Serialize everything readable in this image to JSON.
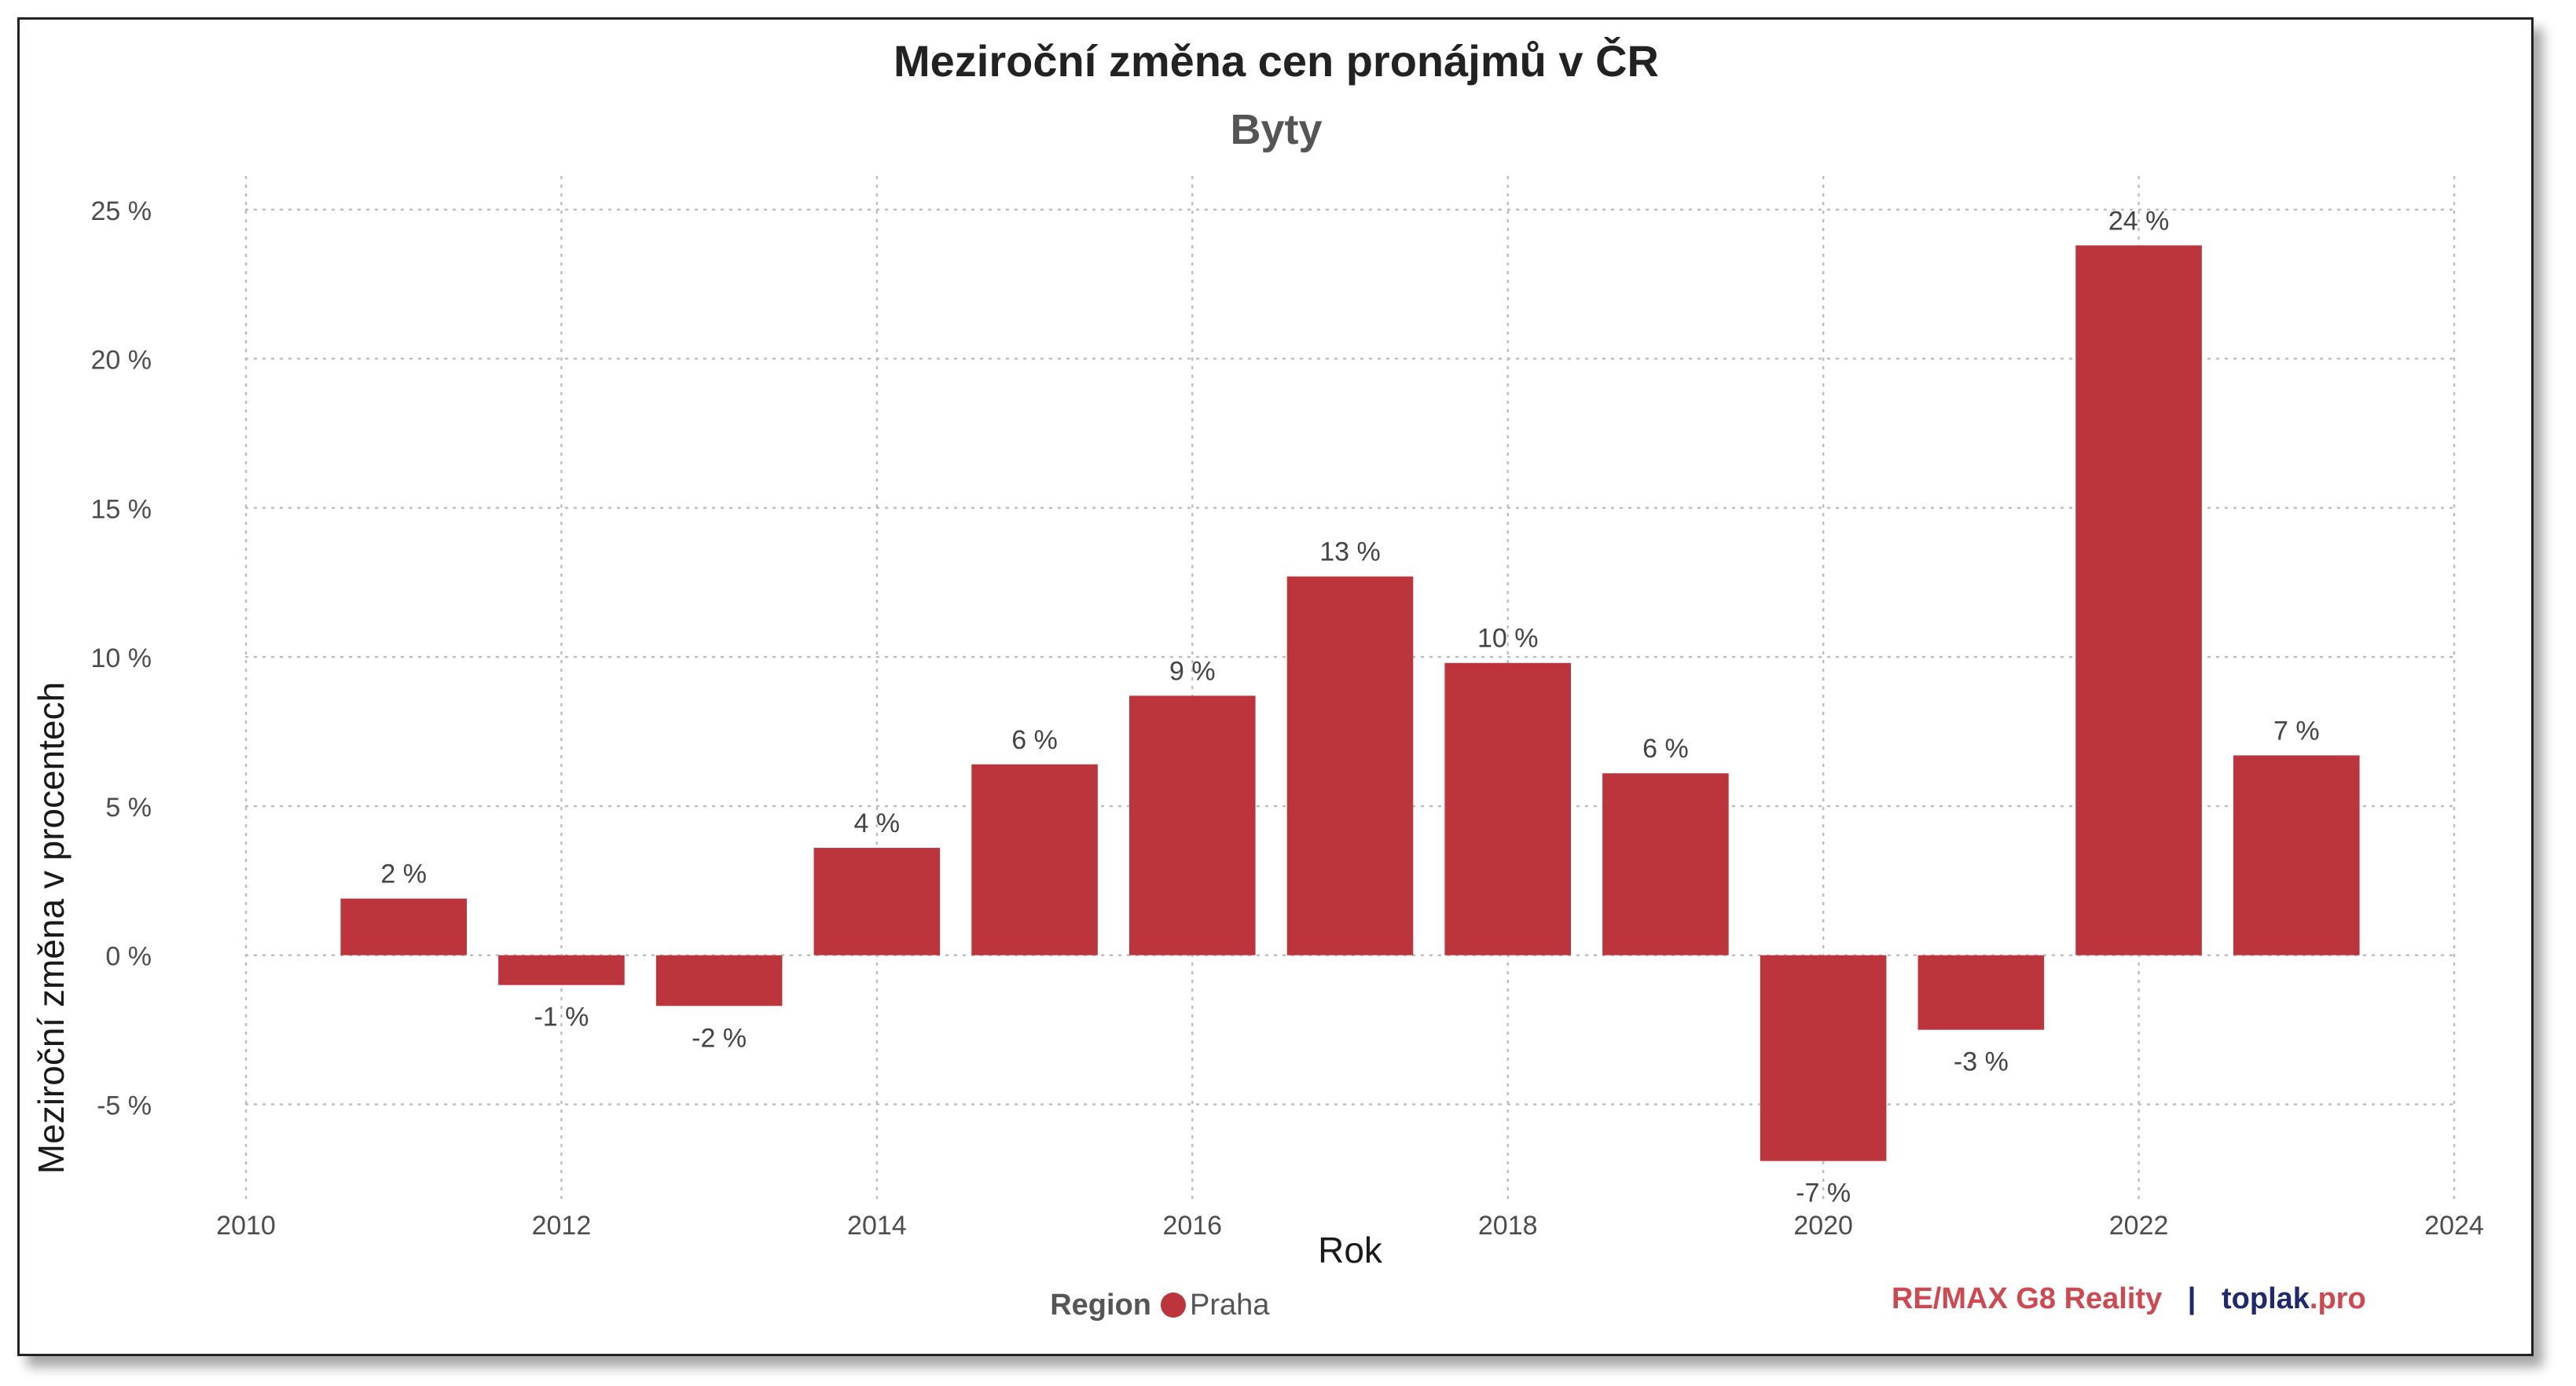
{
  "chart_data": {
    "type": "bar",
    "title": "Meziroční změna cen pronájmů v ČR",
    "subtitle": "Byty",
    "xlabel": "Rok",
    "ylabel": "Meziroční změna v procentech",
    "x": [
      2011,
      2012,
      2013,
      2014,
      2015,
      2016,
      2017,
      2018,
      2019,
      2020,
      2021,
      2022,
      2023
    ],
    "values": [
      1.9,
      -1.0,
      -1.7,
      3.6,
      6.4,
      8.7,
      12.7,
      9.8,
      6.1,
      -6.9,
      -2.5,
      23.8,
      6.7
    ],
    "data_labels": [
      "2 %",
      "-1 %",
      "-2 %",
      "4 %",
      "6 %",
      "9 %",
      "13 %",
      "10 %",
      "6 %",
      "-7 %",
      "-3 %",
      "24 %",
      "7 %"
    ],
    "xticks": [
      "2010",
      "2012",
      "2014",
      "2016",
      "2018",
      "2020",
      "2022",
      "2024"
    ],
    "yticks": [
      "-5 %",
      "0 %",
      "5 %",
      "10 %",
      "15 %",
      "20 %",
      "25 %"
    ],
    "xlim": [
      2010,
      2024
    ],
    "ylim": [
      -8.2,
      26.1
    ],
    "grid": true,
    "legend_placement": "bottom",
    "bar_color": "#bc353c",
    "series": [
      {
        "name": "Praha",
        "color": "#bc353c"
      }
    ]
  },
  "legend": {
    "title": "Region",
    "items": [
      {
        "label": "Praha",
        "color": "#bc353c"
      }
    ]
  },
  "brand": {
    "part1": "RE/MAX G8 Reality",
    "separator": "|",
    "part2a": "toplak",
    "part2b": ".pro",
    "color_red": "#d0484f",
    "color_navy": "#1f2a6e"
  }
}
